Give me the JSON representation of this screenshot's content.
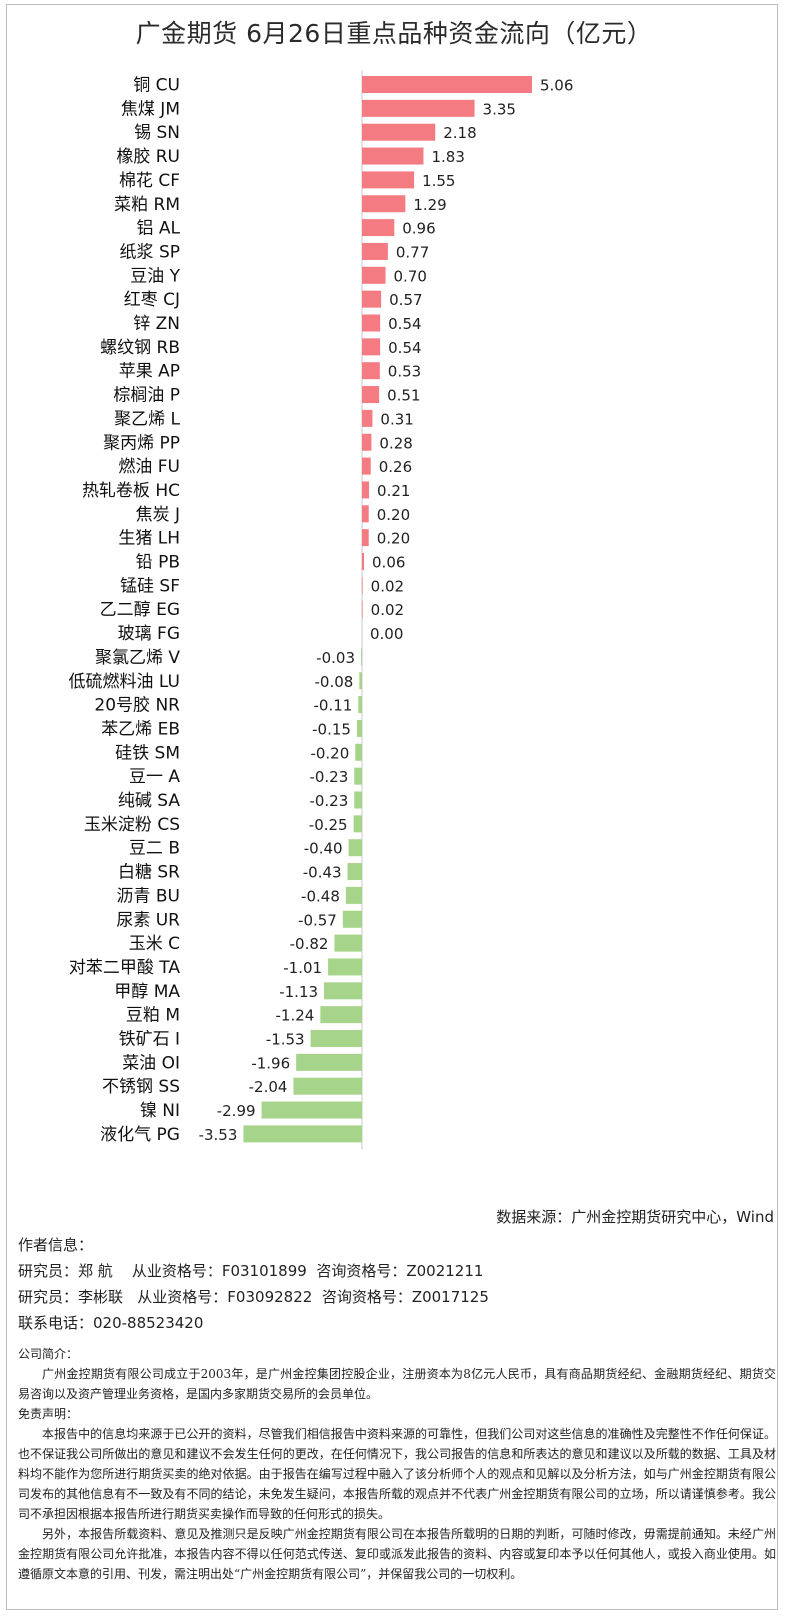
{
  "title": "广金期货 6月26日重点品种资金流向（亿元）",
  "chart_data": {
    "type": "bar",
    "orientation": "horizontal",
    "title": "广金期货 6月26日重点品种资金流向（亿元）",
    "categories": [
      "铜 CU",
      "焦煤 JM",
      "锡 SN",
      "橡胶 RU",
      "棉花 CF",
      "菜粕 RM",
      "铝 AL",
      "纸浆 SP",
      "豆油 Y",
      "红枣 CJ",
      "锌 ZN",
      "螺纹钢 RB",
      "苹果 AP",
      "棕榈油 P",
      "聚乙烯 L",
      "聚丙烯 PP",
      "燃油 FU",
      "热轧卷板 HC",
      "焦炭 J",
      "生猪 LH",
      "铅 PB",
      "锰硅 SF",
      "乙二醇 EG",
      "玻璃 FG",
      "聚氯乙烯 V",
      "低硫燃料油 LU",
      "20号胶 NR",
      "苯乙烯 EB",
      "硅铁 SM",
      "豆一 A",
      "纯碱 SA",
      "玉米淀粉 CS",
      "豆二 B",
      "白糖 SR",
      "沥青 BU",
      "尿素 UR",
      "玉米 C",
      "对苯二甲酸 TA",
      "甲醇 MA",
      "豆粕 M",
      "铁矿石 I",
      "菜油 OI",
      "不锈钢 SS",
      "镍 NI",
      "液化气 PG"
    ],
    "value_labels": [
      "5.06",
      "3.35",
      "2.18",
      "1.83",
      "1.55",
      "1.29",
      "0.96",
      "0.77",
      "0.70",
      "0.57",
      "0.54",
      "0.54",
      "0.53",
      "0.51",
      "0.31",
      "0.28",
      "0.26",
      "0.21",
      "0.20",
      "0.20",
      "0.06",
      "0.02",
      "0.02",
      "0.00",
      "-0.03",
      "-0.08",
      "-0.11",
      "-0.15",
      "-0.20",
      "-0.23",
      "-0.23",
      "-0.25",
      "-0.40",
      "-0.43",
      "-0.48",
      "-0.57",
      "-0.82",
      "-1.01",
      "-1.13",
      "-1.24",
      "-1.53",
      "-1.96",
      "-2.04",
      "-2.99",
      "-3.53"
    ],
    "values": [
      5.06,
      3.35,
      2.18,
      1.83,
      1.55,
      1.29,
      0.96,
      0.77,
      0.7,
      0.57,
      0.54,
      0.54,
      0.53,
      0.51,
      0.31,
      0.28,
      0.26,
      0.21,
      0.2,
      0.2,
      0.06,
      0.02,
      0.02,
      0.0,
      -0.03,
      -0.08,
      -0.11,
      -0.15,
      -0.2,
      -0.23,
      -0.23,
      -0.25,
      -0.4,
      -0.43,
      -0.48,
      -0.57,
      -0.82,
      -1.01,
      -1.13,
      -1.24,
      -1.53,
      -1.96,
      -2.04,
      -2.99,
      -3.53
    ],
    "colors": {
      "positive": "#f47b82",
      "negative": "#a6d48a",
      "axis": "#c8c8c8"
    },
    "xlim": [
      -3.53,
      5.06
    ],
    "grid": false,
    "legend": "none"
  },
  "source": "数据来源：广州金控期货研究中心，Wind",
  "authors": {
    "heading": "作者信息：",
    "rows": [
      "研究员：郑 航    从业资格号：F03101899  咨询资格号：Z0021211",
      "研究员：李彬联   从业资格号：F03092822  咨询资格号：Z0017125",
      "联系电话：020-88523420"
    ]
  },
  "intro": {
    "company_heading": "公司简介：",
    "company_text": "广州金控期货有限公司成立于2003年，是广州金控集团控股企业，注册资本为8亿元人民币，具有商品期货经纪、金融期货经纪、期货交易咨询以及资产管理业务资格，是国内多家期货交易所的会员单位。",
    "disclaimer_heading": "免责声明：",
    "disclaimer_p1": "本报告中的信息均来源于已公开的资料，尽管我们相信报告中资料来源的可靠性，但我们公司对这些信息的准确性及完整性不作任何保证。也不保证我公司所做出的意见和建议不会发生任何的更改，在任何情况下，我公司报告的信息和所表达的意见和建议以及所载的数据、工具及材料均不能作为您所进行期货买卖的绝对依据。由于报告在编写过程中融入了该分析师个人的观点和见解以及分析方法，如与广州金控期货有限公司发布的其他信息有不一致及有不同的结论，未免发生疑问，本报告所载的观点并不代表广州金控期货有限公司的立场，所以请谨慎参考。我公司不承担因根据本报告所进行期货买卖操作而导致的任何形式的损失。",
    "disclaimer_p2": "另外，本报告所载资料、意见及推测只是反映广州金控期货有限公司在本报告所载明的日期的判断，可随时修改，毋需提前通知。未经广州金控期货有限公司允许批准，本报告内容不得以任何范式传送、复印或派发此报告的资料、内容或复印本予以任何其他人，或投入商业使用。如遵循原文本意的引用、刊发，需注明出处“广州金控期货有限公司”，并保留我公司的一切权利。"
  }
}
